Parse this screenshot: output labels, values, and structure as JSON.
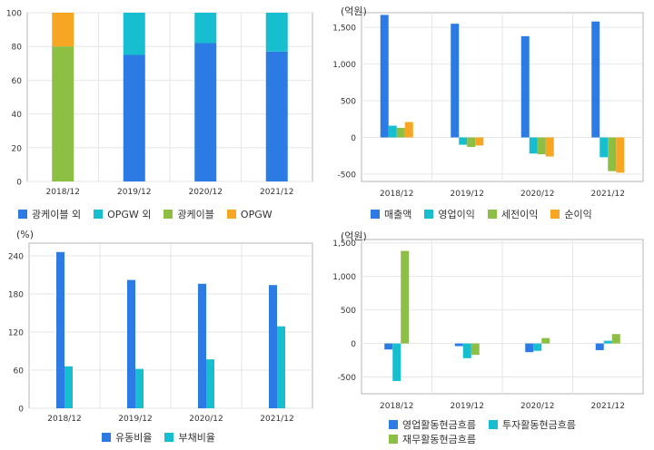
{
  "colors": {
    "blue": "#2c7be5",
    "teal": "#17becf",
    "green": "#8cbf44",
    "orange": "#f6a623",
    "grid": "#e6e6e6",
    "frame": "#b5b5b5"
  },
  "chart_data": [
    {
      "type": "bar",
      "stacked": true,
      "unit": "",
      "categories": [
        "2018/12",
        "2019/12",
        "2020/12",
        "2021/12"
      ],
      "ylim": [
        0,
        100
      ],
      "yticks": [
        0,
        20,
        40,
        60,
        80,
        100
      ],
      "ytick_labels": [
        "0",
        "20",
        "40",
        "60",
        "80",
        "100"
      ],
      "grid": true,
      "legend_position": "bottom",
      "series": [
        {
          "name": "광케이블 외",
          "color": "#2c7be5",
          "values": [
            0,
            75,
            82,
            77
          ]
        },
        {
          "name": "OPGW 외",
          "color": "#17becf",
          "values": [
            0,
            25,
            18,
            23
          ]
        },
        {
          "name": "광케이블",
          "color": "#8cbf44",
          "values": [
            80,
            0,
            0,
            0
          ]
        },
        {
          "name": "OPGW",
          "color": "#f6a623",
          "values": [
            20,
            0,
            0,
            0
          ]
        }
      ]
    },
    {
      "type": "bar",
      "stacked": false,
      "unit": "(억원)",
      "categories": [
        "2018/12",
        "2019/12",
        "2020/12",
        "2021/12"
      ],
      "ylim": [
        -600,
        1700
      ],
      "yticks": [
        -500,
        0,
        500,
        1000,
        1500
      ],
      "ytick_labels": [
        "-500",
        "0",
        "500",
        "1,000",
        "1,500"
      ],
      "grid": true,
      "legend_position": "bottom",
      "series": [
        {
          "name": "매출액",
          "color": "#2c7be5",
          "values": [
            1670,
            1550,
            1380,
            1580
          ]
        },
        {
          "name": "영업이익",
          "color": "#17becf",
          "values": [
            160,
            -100,
            -220,
            -270
          ]
        },
        {
          "name": "세전이익",
          "color": "#8cbf44",
          "values": [
            130,
            -130,
            -230,
            -460
          ]
        },
        {
          "name": "순이익",
          "color": "#f6a623",
          "values": [
            210,
            -110,
            -260,
            -480
          ]
        }
      ]
    },
    {
      "type": "bar",
      "stacked": false,
      "unit": "(%)",
      "categories": [
        "2018/12",
        "2019/12",
        "2020/12",
        "2021/12"
      ],
      "ylim": [
        0,
        260
      ],
      "yticks": [
        0,
        60,
        120,
        180,
        240
      ],
      "ytick_labels": [
        "0",
        "60",
        "120",
        "180",
        "240"
      ],
      "grid": true,
      "legend_position": "bottom",
      "series": [
        {
          "name": "유동비율",
          "color": "#2c7be5",
          "values": [
            246,
            202,
            196,
            194
          ]
        },
        {
          "name": "부채비율",
          "color": "#17becf",
          "values": [
            66,
            62,
            77,
            129
          ]
        }
      ]
    },
    {
      "type": "bar",
      "stacked": false,
      "unit": "(억원)",
      "categories": [
        "2018/12",
        "2019/12",
        "2020/12",
        "2021/12"
      ],
      "ylim": [
        -750,
        1550
      ],
      "yticks": [
        -500,
        0,
        500,
        1000,
        1500
      ],
      "ytick_labels": [
        "-500",
        "0",
        "500",
        "1,000",
        "1,500"
      ],
      "grid": true,
      "legend_position": "bottom",
      "series": [
        {
          "name": "영업활동현금흐름",
          "color": "#2c7be5",
          "values": [
            -90,
            -40,
            -130,
            -100
          ]
        },
        {
          "name": "투자활동현금흐름",
          "color": "#17becf",
          "values": [
            -560,
            -220,
            -110,
            40
          ]
        },
        {
          "name": "재무활동현금흐름",
          "color": "#8cbf44",
          "values": [
            1380,
            -170,
            80,
            140
          ]
        }
      ]
    }
  ]
}
